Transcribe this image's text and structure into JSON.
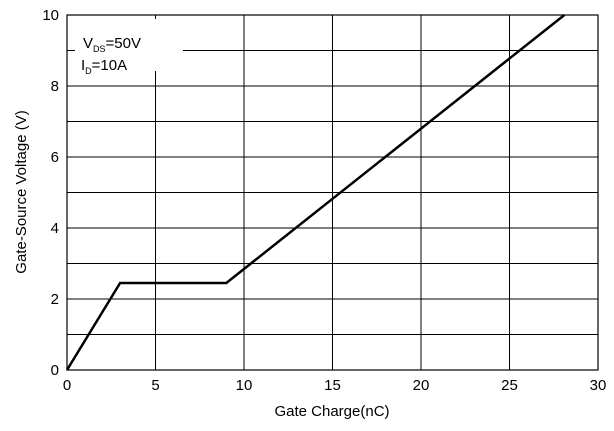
{
  "chart_data": {
    "type": "line",
    "x_label": "Gate Charge(nC)",
    "y_label": "Gate-Source Voltage (V)",
    "annotations": [
      {
        "main": "V",
        "sub": "DS",
        "rest": "=50V"
      },
      {
        "main": "I",
        "sub": "D",
        "rest": "=10A"
      }
    ],
    "series": [
      {
        "color": "#000000",
        "x": [
          0,
          3.0,
          9.0,
          28.1
        ],
        "values": [
          0,
          2.45,
          2.45,
          10
        ]
      }
    ],
    "xlim": [
      0,
      30
    ],
    "xticks": [
      0,
      5,
      10,
      15,
      20,
      25,
      30
    ],
    "ylim": [
      0,
      10
    ],
    "yticks": [
      0,
      2,
      4,
      6,
      8,
      10
    ],
    "y_minor_ticks": [
      1,
      3,
      5,
      7,
      9
    ],
    "grid": true
  }
}
